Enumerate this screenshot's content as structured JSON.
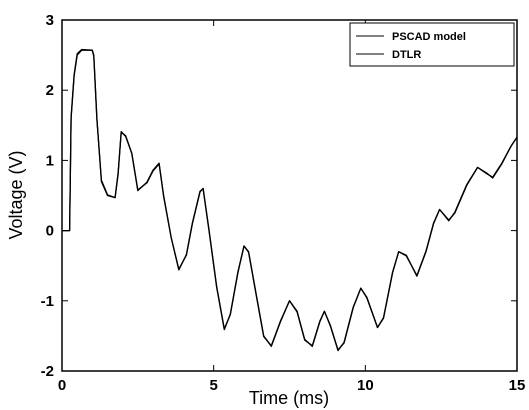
{
  "chart_data": {
    "type": "line",
    "title": "",
    "xlabel": "Time (ms)",
    "ylabel": "Voltage (V)",
    "xlim": [
      0,
      15
    ],
    "ylim": [
      -2,
      3
    ],
    "xticks": [
      0,
      5,
      10,
      15
    ],
    "yticks": [
      -2,
      -1,
      0,
      1,
      2,
      3
    ],
    "xtick_labels": [
      "0",
      "5",
      "10",
      "15"
    ],
    "ytick_labels": [
      "-2",
      "-1",
      "0",
      "1",
      "2",
      "3"
    ],
    "grid": false,
    "legend_position": "top-right",
    "series": [
      {
        "name": "PSCAD model",
        "color": "#000000",
        "points": [
          [
            0,
            0
          ],
          [
            0.25,
            0
          ],
          [
            0.3,
            1.6
          ],
          [
            0.4,
            2.2
          ],
          [
            0.5,
            2.5
          ],
          [
            0.65,
            2.57
          ],
          [
            1.0,
            2.57
          ],
          [
            1.05,
            2.5
          ],
          [
            1.15,
            1.6
          ],
          [
            1.3,
            0.7
          ],
          [
            1.5,
            0.5
          ],
          [
            1.75,
            0.47
          ],
          [
            1.85,
            0.8
          ],
          [
            1.95,
            1.4
          ],
          [
            2.1,
            1.35
          ],
          [
            2.3,
            1.1
          ],
          [
            2.5,
            0.58
          ],
          [
            2.8,
            0.68
          ],
          [
            3.0,
            0.85
          ],
          [
            3.2,
            0.95
          ],
          [
            3.35,
            0.5
          ],
          [
            3.6,
            -0.1
          ],
          [
            3.85,
            -0.55
          ],
          [
            4.1,
            -0.35
          ],
          [
            4.3,
            0.1
          ],
          [
            4.55,
            0.55
          ],
          [
            4.65,
            0.6
          ],
          [
            4.85,
            0.0
          ],
          [
            5.1,
            -0.8
          ],
          [
            5.35,
            -1.4
          ],
          [
            5.55,
            -1.2
          ],
          [
            5.8,
            -0.6
          ],
          [
            6.0,
            -0.22
          ],
          [
            6.15,
            -0.3
          ],
          [
            6.4,
            -0.9
          ],
          [
            6.65,
            -1.5
          ],
          [
            6.9,
            -1.65
          ],
          [
            7.2,
            -1.3
          ],
          [
            7.5,
            -1.0
          ],
          [
            7.75,
            -1.15
          ],
          [
            8.0,
            -1.55
          ],
          [
            8.25,
            -1.65
          ],
          [
            8.5,
            -1.3
          ],
          [
            8.65,
            -1.15
          ],
          [
            8.85,
            -1.35
          ],
          [
            9.1,
            -1.7
          ],
          [
            9.3,
            -1.6
          ],
          [
            9.6,
            -1.1
          ],
          [
            9.85,
            -0.82
          ],
          [
            10.05,
            -0.95
          ],
          [
            10.4,
            -1.38
          ],
          [
            10.6,
            -1.25
          ],
          [
            10.9,
            -0.6
          ],
          [
            11.1,
            -0.3
          ],
          [
            11.35,
            -0.35
          ],
          [
            11.7,
            -0.65
          ],
          [
            12.0,
            -0.3
          ],
          [
            12.25,
            0.1
          ],
          [
            12.45,
            0.3
          ],
          [
            12.75,
            0.15
          ],
          [
            12.95,
            0.25
          ],
          [
            13.35,
            0.65
          ],
          [
            13.7,
            0.9
          ],
          [
            14.0,
            0.82
          ],
          [
            14.2,
            0.75
          ],
          [
            14.5,
            0.95
          ],
          [
            14.8,
            1.2
          ],
          [
            15,
            1.33
          ]
        ]
      },
      {
        "name": "DTLR",
        "color": "#000000",
        "points": [
          [
            0,
            0
          ],
          [
            0.25,
            0
          ],
          [
            0.3,
            1.62
          ],
          [
            0.4,
            2.22
          ],
          [
            0.5,
            2.52
          ],
          [
            0.65,
            2.58
          ],
          [
            1.0,
            2.57
          ],
          [
            1.05,
            2.48
          ],
          [
            1.15,
            1.58
          ],
          [
            1.3,
            0.72
          ],
          [
            1.5,
            0.51
          ],
          [
            1.75,
            0.47
          ],
          [
            1.85,
            0.82
          ],
          [
            1.95,
            1.41
          ],
          [
            2.1,
            1.34
          ],
          [
            2.3,
            1.1
          ],
          [
            2.5,
            0.57
          ],
          [
            2.8,
            0.69
          ],
          [
            3.0,
            0.86
          ],
          [
            3.2,
            0.96
          ],
          [
            3.35,
            0.49
          ],
          [
            3.6,
            -0.1
          ],
          [
            3.85,
            -0.56
          ],
          [
            4.1,
            -0.34
          ],
          [
            4.3,
            0.11
          ],
          [
            4.55,
            0.56
          ],
          [
            4.65,
            0.6
          ],
          [
            4.85,
            -0.01
          ],
          [
            5.1,
            -0.81
          ],
          [
            5.35,
            -1.41
          ],
          [
            5.55,
            -1.19
          ],
          [
            5.8,
            -0.59
          ],
          [
            6.0,
            -0.22
          ],
          [
            6.15,
            -0.31
          ],
          [
            6.4,
            -0.91
          ],
          [
            6.65,
            -1.51
          ],
          [
            6.9,
            -1.64
          ],
          [
            7.2,
            -1.29
          ],
          [
            7.5,
            -1.0
          ],
          [
            7.75,
            -1.16
          ],
          [
            8.0,
            -1.56
          ],
          [
            8.25,
            -1.64
          ],
          [
            8.5,
            -1.29
          ],
          [
            8.65,
            -1.15
          ],
          [
            8.85,
            -1.36
          ],
          [
            9.1,
            -1.71
          ],
          [
            9.3,
            -1.59
          ],
          [
            9.6,
            -1.09
          ],
          [
            9.85,
            -0.82
          ],
          [
            10.05,
            -0.96
          ],
          [
            10.4,
            -1.38
          ],
          [
            10.6,
            -1.24
          ],
          [
            10.9,
            -0.59
          ],
          [
            11.1,
            -0.3
          ],
          [
            11.35,
            -0.36
          ],
          [
            11.7,
            -0.64
          ],
          [
            12.0,
            -0.29
          ],
          [
            12.25,
            0.11
          ],
          [
            12.45,
            0.3
          ],
          [
            12.75,
            0.14
          ],
          [
            12.95,
            0.26
          ],
          [
            13.35,
            0.66
          ],
          [
            13.7,
            0.9
          ],
          [
            14.0,
            0.81
          ],
          [
            14.2,
            0.76
          ],
          [
            14.5,
            0.96
          ],
          [
            14.8,
            1.2
          ],
          [
            15,
            1.33
          ]
        ]
      }
    ]
  }
}
